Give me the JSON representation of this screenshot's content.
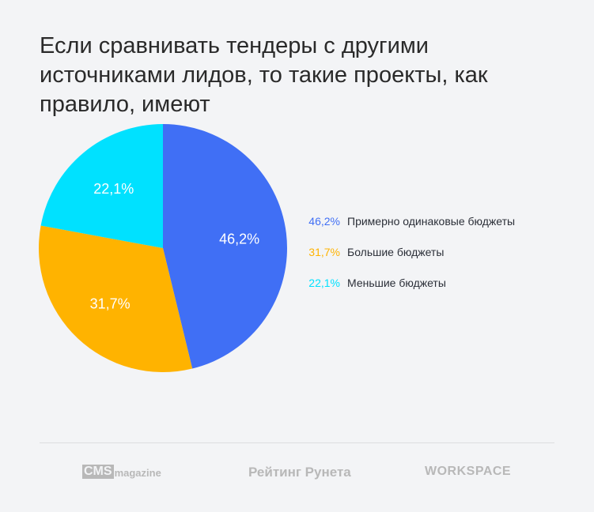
{
  "title": "Если сравнивать тендеры с другими источниками лидов, то такие проекты, как правило, имеют",
  "chart_data": {
    "type": "pie",
    "title": "Если сравнивать тендеры с другими источниками лидов, то такие проекты, как правило, имеют",
    "categories": [
      "Примерно одинаковые бюджеты",
      "Большие бюджеты",
      "Меньшие бюджеты"
    ],
    "values": [
      46.2,
      31.7,
      22.1
    ],
    "labels": [
      "46,2%",
      "31,7%",
      "22,1%"
    ],
    "colors": [
      "#406ff5",
      "#ffb300",
      "#00e1ff"
    ],
    "start": "12 o'clock, clockwise",
    "legend": "right"
  },
  "footer": {
    "logos": {
      "cms_box": "CMS",
      "cms_rest": "magazine",
      "rating": "Рейтинг Рунета",
      "workspace": "WORKSPACE"
    }
  }
}
